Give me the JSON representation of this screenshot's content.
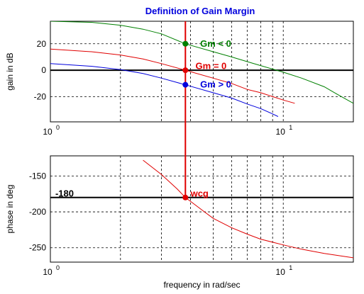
{
  "title": "Definition of Gain Margin",
  "colors": {
    "title": "#0000dd",
    "green": "#008000",
    "red": "#e00000",
    "blue": "#0000dd",
    "black": "#000000"
  },
  "chart_data": [
    {
      "id": "gain",
      "type": "line",
      "xscale": "log",
      "xlim": [
        1,
        20
      ],
      "ylim": [
        -39,
        37
      ],
      "yticks": [
        -20,
        0,
        20
      ],
      "xticklabels": [
        {
          "base": "10",
          "exp": "0",
          "value": 1
        },
        {
          "base": "10",
          "exp": "1",
          "value": 10
        }
      ],
      "ylabel": "gain in dB",
      "xlabel": "",
      "grid": true,
      "reference_line": {
        "y": 0,
        "color": "#000000"
      },
      "series": [
        {
          "color": "#008000",
          "x": [
            1,
            1.5,
            2,
            2.5,
            3,
            3.8,
            5,
            6,
            7,
            8,
            10,
            12,
            15,
            17,
            20
          ],
          "y": [
            37,
            36.2,
            34,
            31,
            27.5,
            20,
            14,
            10,
            6.5,
            3.5,
            -1.5,
            -6,
            -12.5,
            -18,
            -25
          ]
        },
        {
          "color": "#e00000",
          "x": [
            1,
            1.5,
            2,
            2.5,
            3,
            3.8,
            5,
            6,
            7,
            8,
            10,
            11.2
          ],
          "y": [
            16,
            14,
            11.5,
            8.5,
            5,
            0,
            -6,
            -10,
            -14.5,
            -17,
            -22.5,
            -25
          ]
        },
        {
          "color": "#0000dd",
          "x": [
            1,
            1.5,
            2,
            2.5,
            3,
            3.8,
            5,
            6,
            7,
            8,
            9,
            9.5
          ],
          "y": [
            5,
            3,
            0.5,
            -2.5,
            -6,
            -11,
            -17,
            -21,
            -25.5,
            -29,
            -33,
            -35
          ]
        }
      ],
      "markers": [
        {
          "x": 3.8,
          "y": 20,
          "color": "#008000"
        },
        {
          "x": 3.8,
          "y": 0,
          "color": "#e00000"
        },
        {
          "x": 3.8,
          "y": -11,
          "color": "#0000dd"
        }
      ],
      "annotations": [
        {
          "text": "Gm  < 0",
          "x": 4.4,
          "y": 20,
          "color": "#008000"
        },
        {
          "text": "Gm = 0",
          "x": 4.2,
          "y": 3,
          "color": "#e00000"
        },
        {
          "text": "Gm  > 0",
          "x": 4.4,
          "y": -11,
          "color": "#0000dd"
        }
      ]
    },
    {
      "id": "phase",
      "type": "line",
      "xscale": "log",
      "xlim": [
        1,
        20
      ],
      "ylim": [
        -270,
        -122
      ],
      "yticks": [
        -250,
        -200,
        -150
      ],
      "xticklabels": [
        {
          "base": "10",
          "exp": "0",
          "value": 1
        },
        {
          "base": "10",
          "exp": "1",
          "value": 10
        }
      ],
      "ylabel": "phase in deg",
      "xlabel": "frequency in rad/sec",
      "grid": true,
      "reference_line": {
        "y": -180,
        "color": "#000000"
      },
      "series": [
        {
          "color": "#e00000",
          "x": [
            2.5,
            3,
            3.5,
            3.8,
            4.5,
            5,
            6,
            7,
            8,
            10,
            12,
            15,
            20
          ],
          "y": [
            -128,
            -148,
            -168,
            -180,
            -198,
            -209,
            -222,
            -231,
            -238,
            -246,
            -252,
            -258,
            -264
          ]
        }
      ],
      "markers": [
        {
          "x": 3.8,
          "y": -180,
          "color": "#e00000"
        }
      ],
      "annotations": [
        {
          "text": "-180",
          "x": 1.05,
          "y": -175,
          "color": "#000000"
        },
        {
          "text": "wcg",
          "x": 4.0,
          "y": -175,
          "color": "#e00000"
        }
      ]
    }
  ],
  "crossing_line": {
    "x": 3.8,
    "color": "#e00000"
  }
}
